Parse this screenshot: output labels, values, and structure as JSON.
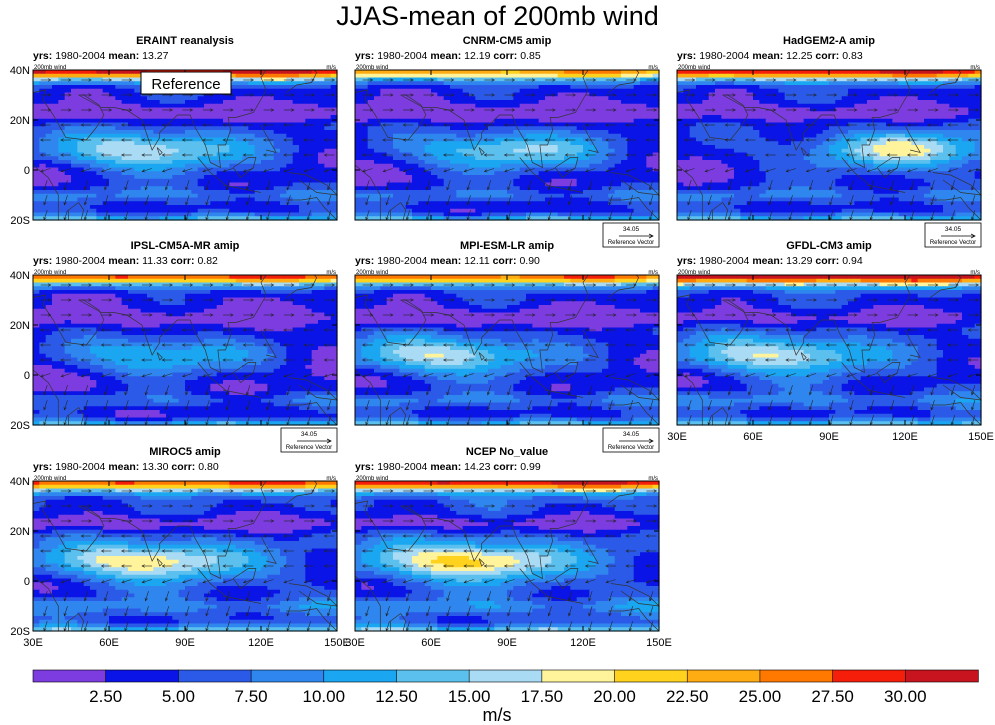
{
  "figure": {
    "title": "JJAS-mean of 200mb wind",
    "colorbar_unit": "m/s",
    "colorbar_levels": [
      "2.50",
      "5.00",
      "7.50",
      "10.00",
      "12.50",
      "15.00",
      "17.50",
      "20.00",
      "22.50",
      "25.00",
      "27.50",
      "30.00"
    ],
    "colorbar_colors": [
      "#7c3ce0",
      "#0a14e6",
      "#2c5ae8",
      "#2f86ee",
      "#1aa6f0",
      "#5cc0ee",
      "#a9dcf4",
      "#fff49b",
      "#ffd21e",
      "#ffac12",
      "#ff7800",
      "#f41e0a",
      "#c8141e"
    ],
    "lon_ticks": [
      "30E",
      "60E",
      "90E",
      "120E",
      "150E"
    ],
    "lat_ticks": [
      "40N",
      "20N",
      "0",
      "20S"
    ],
    "units_label": "m/s",
    "wind_label": "200mb wind",
    "ref_vector_value": "34.05",
    "ref_vector_label": "Reference Vector",
    "reference_tag": "Reference",
    "label_yrs": "yrs:",
    "label_mean": "mean:",
    "label_corr": "corr:"
  },
  "chart_data": [
    {
      "type": "heatmap",
      "title": "ERAINT reanalysis",
      "years": "1980-2004",
      "mean": "13.27",
      "corr": "",
      "reference": true,
      "ref_vector": false,
      "xlim": [
        30,
        150
      ],
      "ylim": [
        -20,
        40
      ]
    },
    {
      "type": "heatmap",
      "title": "CNRM-CM5 amip",
      "years": "1980-2004",
      "mean": "12.19",
      "corr": "0.85",
      "reference": false,
      "ref_vector": true,
      "xlim": [
        30,
        150
      ],
      "ylim": [
        -20,
        40
      ]
    },
    {
      "type": "heatmap",
      "title": "HadGEM2-A amip",
      "years": "1980-2004",
      "mean": "12.25",
      "corr": "0.83",
      "reference": false,
      "ref_vector": true,
      "xlim": [
        30,
        150
      ],
      "ylim": [
        -20,
        40
      ]
    },
    {
      "type": "heatmap",
      "title": "IPSL-CM5A-MR amip",
      "years": "1980-2004",
      "mean": "11.33",
      "corr": "0.82",
      "reference": false,
      "ref_vector": true,
      "xlim": [
        30,
        150
      ],
      "ylim": [
        -20,
        40
      ]
    },
    {
      "type": "heatmap",
      "title": "MPI-ESM-LR amip",
      "years": "1980-2004",
      "mean": "12.11",
      "corr": "0.90",
      "reference": false,
      "ref_vector": true,
      "xlim": [
        30,
        150
      ],
      "ylim": [
        -20,
        40
      ]
    },
    {
      "type": "heatmap",
      "title": "GFDL-CM3 amip",
      "years": "1980-2004",
      "mean": "13.29",
      "corr": "0.94",
      "reference": false,
      "ref_vector": false,
      "xlim": [
        30,
        150
      ],
      "ylim": [
        -20,
        40
      ]
    },
    {
      "type": "heatmap",
      "title": "MIROC5 amip",
      "years": "1980-2004",
      "mean": "13.30",
      "corr": "0.80",
      "reference": false,
      "ref_vector": false,
      "xlim": [
        30,
        150
      ],
      "ylim": [
        -20,
        40
      ]
    },
    {
      "type": "heatmap",
      "title": "NCEP No_value",
      "years": "1980-2004",
      "mean": "14.23",
      "corr": "0.99",
      "reference": false,
      "ref_vector": false,
      "xlim": [
        30,
        150
      ],
      "ylim": [
        -20,
        40
      ]
    }
  ]
}
